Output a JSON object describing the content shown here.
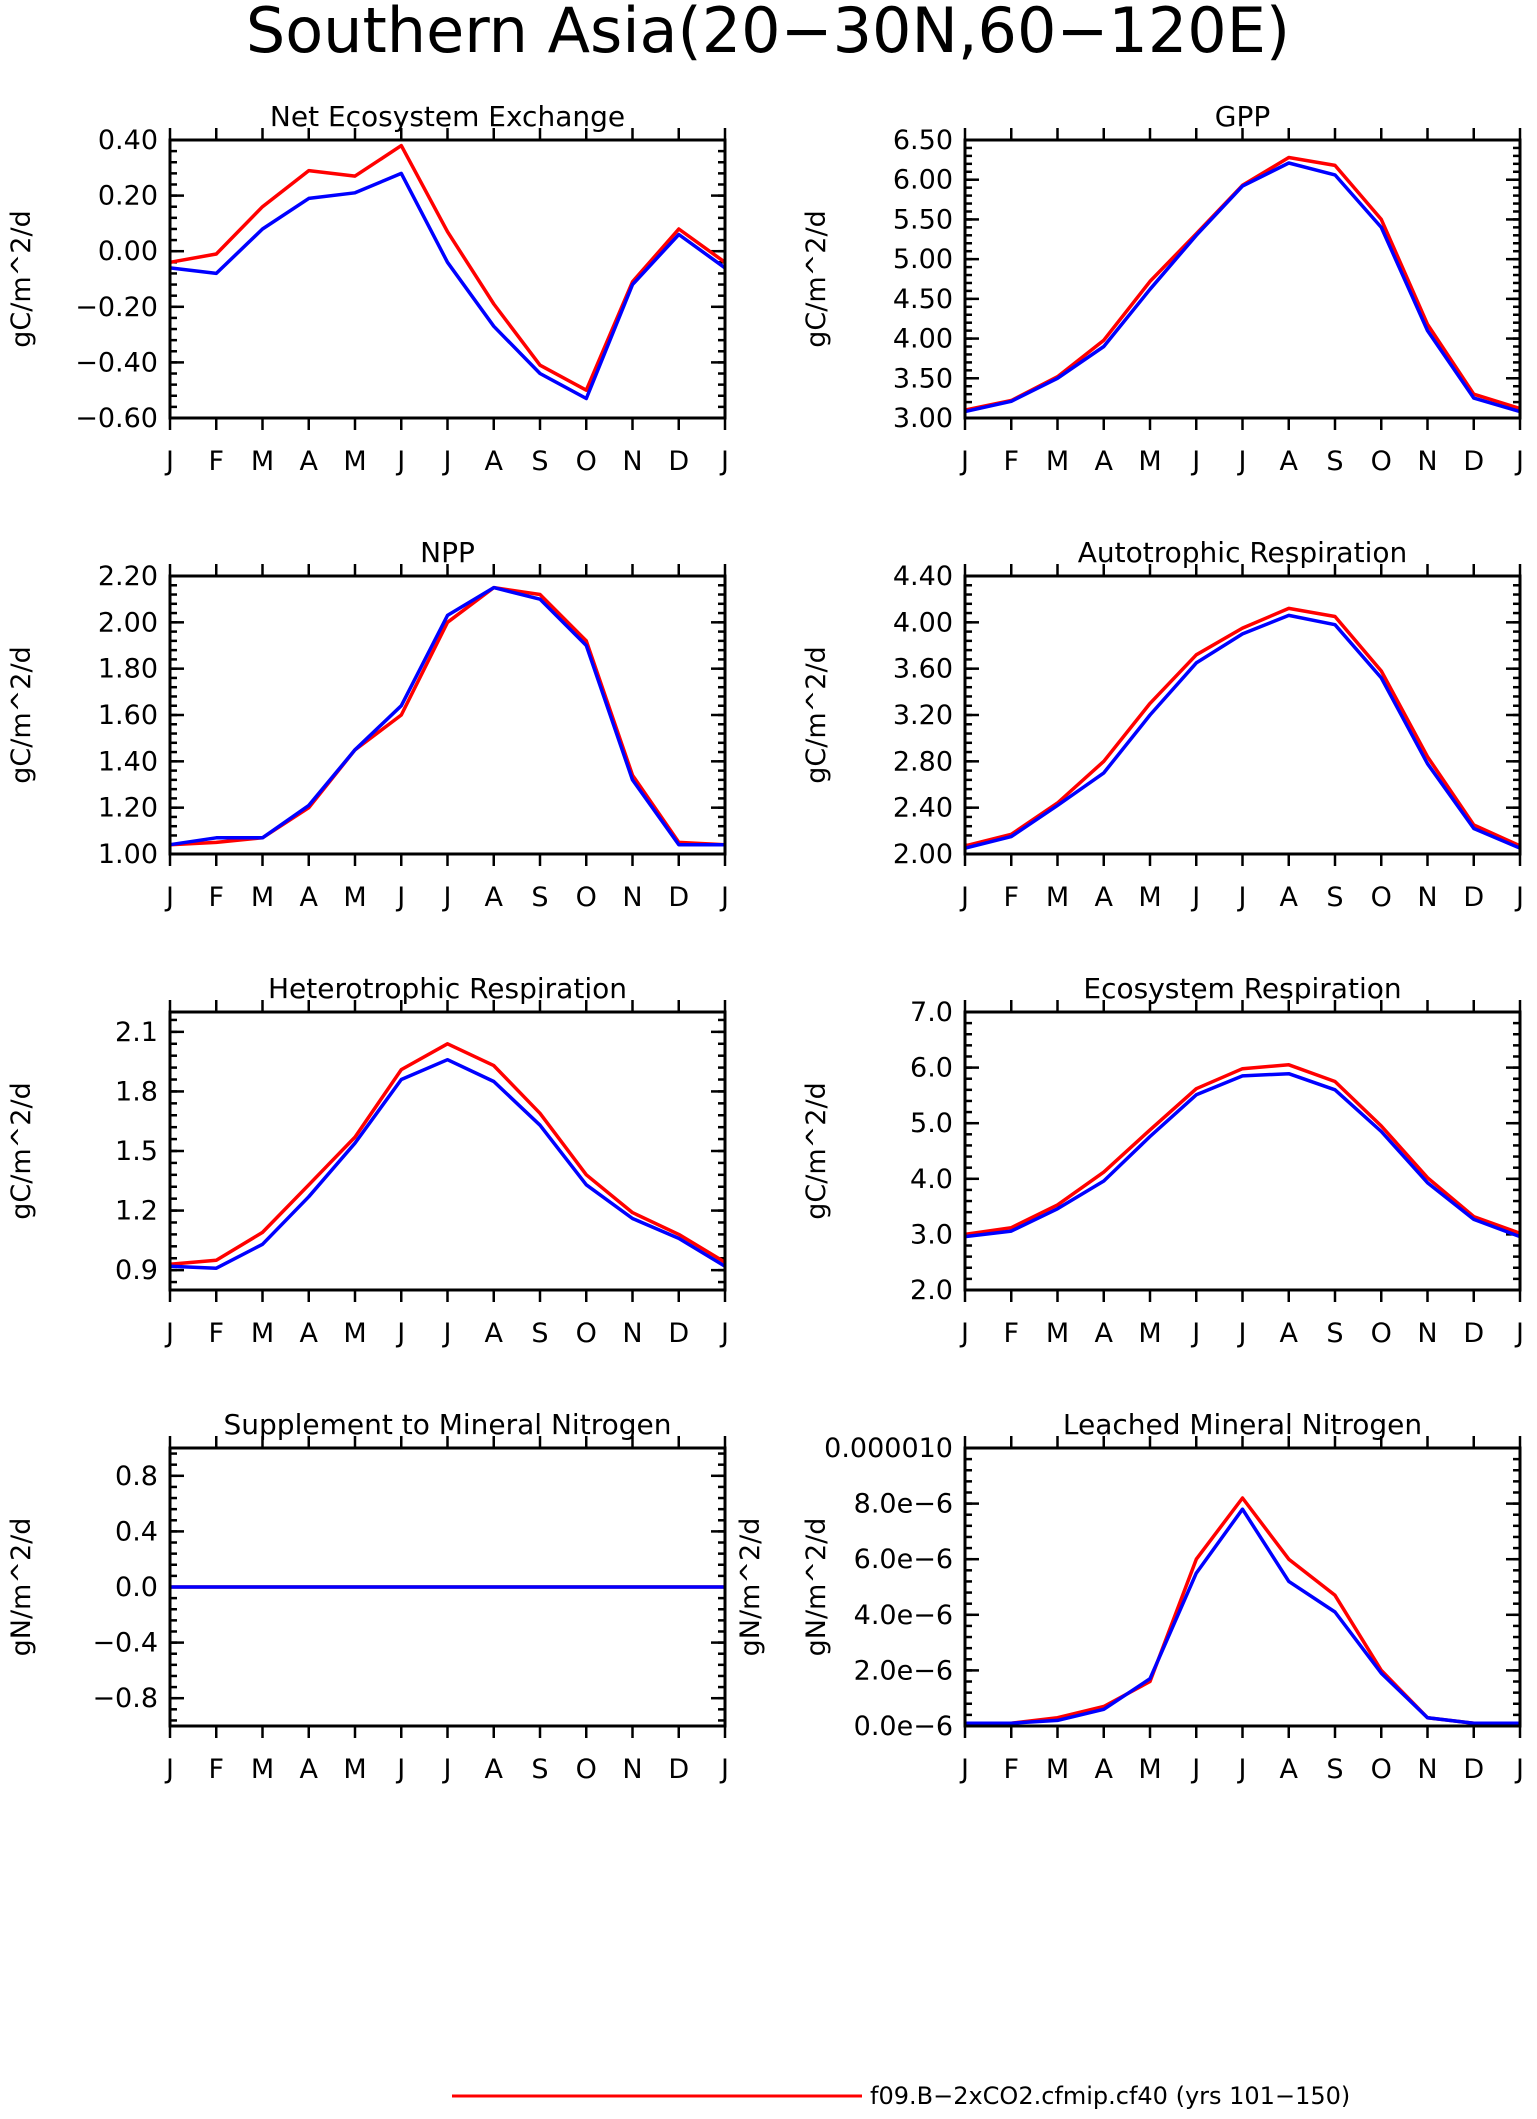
{
  "title": "Southern Asia(20−30N,60−120E)",
  "legend": [
    {
      "label": "f09.B−2xCO2.cfmip.cf40 (yrs 101−150)",
      "color": "#ff0000"
    }
  ],
  "colors": {
    "series_red": "#ff0000",
    "series_blue": "#0000ff"
  },
  "chart_data": [
    {
      "type": "line",
      "title": "Net Ecosystem Exchange",
      "ylabel": "gC/m^2/d",
      "categories": [
        "J",
        "F",
        "M",
        "A",
        "M",
        "J",
        "J",
        "A",
        "S",
        "O",
        "N",
        "D",
        "J"
      ],
      "yticks": [
        -0.6,
        -0.4,
        -0.2,
        0.0,
        0.2,
        0.4
      ],
      "ytick_labels": [
        "−0.60",
        "−0.40",
        "−0.20",
        "0.00",
        "0.20",
        "0.40"
      ],
      "ylim": [
        -0.6,
        0.4
      ],
      "series": [
        {
          "color": "#ff0000",
          "values": [
            -0.04,
            -0.01,
            0.16,
            0.29,
            0.27,
            0.38,
            0.07,
            -0.19,
            -0.41,
            -0.5,
            -0.11,
            0.08,
            -0.04
          ]
        },
        {
          "color": "#0000ff",
          "values": [
            -0.06,
            -0.08,
            0.08,
            0.19,
            0.21,
            0.28,
            -0.04,
            -0.27,
            -0.44,
            -0.53,
            -0.12,
            0.06,
            -0.06
          ]
        }
      ]
    },
    {
      "type": "line",
      "title": "GPP",
      "ylabel": "gC/m^2/d",
      "categories": [
        "J",
        "F",
        "M",
        "A",
        "M",
        "J",
        "J",
        "A",
        "S",
        "O",
        "N",
        "D",
        "J"
      ],
      "yticks": [
        3.0,
        3.5,
        4.0,
        4.5,
        5.0,
        5.5,
        6.0,
        6.5
      ],
      "ytick_labels": [
        "3.00",
        "3.50",
        "4.00",
        "4.50",
        "5.00",
        "5.50",
        "6.00",
        "6.50"
      ],
      "ylim": [
        3.0,
        6.5
      ],
      "series": [
        {
          "color": "#ff0000",
          "values": [
            3.1,
            3.22,
            3.52,
            3.98,
            4.72,
            5.32,
            5.93,
            6.28,
            6.18,
            5.5,
            4.18,
            3.3,
            3.12
          ]
        },
        {
          "color": "#0000ff",
          "values": [
            3.08,
            3.21,
            3.5,
            3.9,
            4.62,
            5.3,
            5.92,
            6.21,
            6.06,
            5.4,
            4.1,
            3.25,
            3.08
          ]
        }
      ]
    },
    {
      "type": "line",
      "title": "NPP",
      "ylabel": "gC/m^2/d",
      "categories": [
        "J",
        "F",
        "M",
        "A",
        "M",
        "J",
        "J",
        "A",
        "S",
        "O",
        "N",
        "D",
        "J"
      ],
      "yticks": [
        1.0,
        1.2,
        1.4,
        1.6,
        1.8,
        2.0,
        2.2
      ],
      "ytick_labels": [
        "1.00",
        "1.20",
        "1.40",
        "1.60",
        "1.80",
        "2.00",
        "2.20"
      ],
      "ylim": [
        1.0,
        2.2
      ],
      "series": [
        {
          "color": "#ff0000",
          "values": [
            1.04,
            1.05,
            1.07,
            1.2,
            1.45,
            1.6,
            2.0,
            2.15,
            2.12,
            1.92,
            1.34,
            1.05,
            1.04
          ]
        },
        {
          "color": "#0000ff",
          "values": [
            1.04,
            1.07,
            1.07,
            1.21,
            1.45,
            1.64,
            2.03,
            2.15,
            2.1,
            1.9,
            1.32,
            1.04,
            1.04
          ]
        }
      ]
    },
    {
      "type": "line",
      "title": "Autotrophic Respiration",
      "ylabel": "gC/m^2/d",
      "categories": [
        "J",
        "F",
        "M",
        "A",
        "M",
        "J",
        "J",
        "A",
        "S",
        "O",
        "N",
        "D",
        "J"
      ],
      "yticks": [
        2.0,
        2.4,
        2.8,
        3.2,
        3.6,
        4.0,
        4.4
      ],
      "ytick_labels": [
        "2.00",
        "2.40",
        "2.80",
        "3.20",
        "3.60",
        "4.00",
        "4.40"
      ],
      "ylim": [
        2.0,
        4.4
      ],
      "series": [
        {
          "color": "#ff0000",
          "values": [
            2.07,
            2.17,
            2.44,
            2.8,
            3.3,
            3.72,
            3.95,
            4.12,
            4.05,
            3.58,
            2.84,
            2.25,
            2.07
          ]
        },
        {
          "color": "#0000ff",
          "values": [
            2.05,
            2.15,
            2.42,
            2.7,
            3.2,
            3.65,
            3.9,
            4.06,
            3.98,
            3.52,
            2.78,
            2.22,
            2.05
          ]
        }
      ]
    },
    {
      "type": "line",
      "title": "Heterotrophic Respiration",
      "ylabel": "gC/m^2/d",
      "categories": [
        "J",
        "F",
        "M",
        "A",
        "M",
        "J",
        "J",
        "A",
        "S",
        "O",
        "N",
        "D",
        "J"
      ],
      "yticks": [
        0.9,
        1.2,
        1.5,
        1.8,
        2.1
      ],
      "ytick_labels": [
        "0.9",
        "1.2",
        "1.5",
        "1.8",
        "2.1"
      ],
      "ylim": [
        0.8,
        2.2
      ],
      "series": [
        {
          "color": "#ff0000",
          "values": [
            0.93,
            0.95,
            1.09,
            1.33,
            1.57,
            1.91,
            2.04,
            1.93,
            1.69,
            1.38,
            1.19,
            1.08,
            0.94
          ]
        },
        {
          "color": "#0000ff",
          "values": [
            0.92,
            0.91,
            1.03,
            1.27,
            1.54,
            1.86,
            1.96,
            1.85,
            1.63,
            1.33,
            1.16,
            1.06,
            0.92
          ]
        }
      ]
    },
    {
      "type": "line",
      "title": "Ecosystem Respiration",
      "ylabel": "gC/m^2/d",
      "categories": [
        "J",
        "F",
        "M",
        "A",
        "M",
        "J",
        "J",
        "A",
        "S",
        "O",
        "N",
        "D",
        "J"
      ],
      "yticks": [
        2.0,
        3.0,
        4.0,
        5.0,
        6.0,
        7.0
      ],
      "ytick_labels": [
        "2.0",
        "3.0",
        "4.0",
        "5.0",
        "6.0",
        "7.0"
      ],
      "ylim": [
        2.0,
        7.0
      ],
      "series": [
        {
          "color": "#ff0000",
          "values": [
            3.0,
            3.12,
            3.53,
            4.12,
            4.88,
            5.62,
            5.98,
            6.05,
            5.75,
            4.95,
            4.02,
            3.32,
            3.02
          ]
        },
        {
          "color": "#0000ff",
          "values": [
            2.96,
            3.06,
            3.46,
            3.96,
            4.76,
            5.51,
            5.85,
            5.89,
            5.6,
            4.85,
            3.93,
            3.27,
            2.96
          ]
        }
      ]
    },
    {
      "type": "line",
      "title": "Supplement to Mineral Nitrogen",
      "ylabel": "gN/m^2/d",
      "categories": [
        "J",
        "F",
        "M",
        "A",
        "M",
        "J",
        "J",
        "A",
        "S",
        "O",
        "N",
        "D",
        "J"
      ],
      "yticks": [
        -0.8,
        -0.4,
        0.0,
        0.4,
        0.8
      ],
      "ytick_labels": [
        "−0.8",
        "−0.4",
        "0.0",
        "0.4",
        "0.8"
      ],
      "ylim": [
        -1.0,
        1.0
      ],
      "right_ylabel": true,
      "series": [
        {
          "color": "#ff0000",
          "values": [
            0,
            0,
            0,
            0,
            0,
            0,
            0,
            0,
            0,
            0,
            0,
            0,
            0
          ]
        },
        {
          "color": "#0000ff",
          "values": [
            0,
            0,
            0,
            0,
            0,
            0,
            0,
            0,
            0,
            0,
            0,
            0,
            0
          ]
        }
      ]
    },
    {
      "type": "line",
      "title": "Leached Mineral Nitrogen",
      "ylabel": "gN/m^2/d",
      "categories": [
        "J",
        "F",
        "M",
        "A",
        "M",
        "J",
        "J",
        "A",
        "S",
        "O",
        "N",
        "D",
        "J"
      ],
      "yticks": [
        0.0,
        2e-06,
        4e-06,
        6e-06,
        8e-06,
        1e-05
      ],
      "ytick_labels": [
        "0.0e−6",
        "2.0e−6",
        "4.0e−6",
        "6.0e−6",
        "8.0e−6",
        "0.000010"
      ],
      "ylim": [
        0.0,
        1e-05
      ],
      "series": [
        {
          "color": "#ff0000",
          "values": [
            1e-07,
            1e-07,
            3e-07,
            7e-07,
            1.6e-06,
            6e-06,
            8.2e-06,
            6e-06,
            4.7e-06,
            2e-06,
            3e-07,
            1e-07,
            1e-07
          ]
        },
        {
          "color": "#0000ff",
          "values": [
            1e-07,
            1e-07,
            2e-07,
            6e-07,
            1.7e-06,
            5.5e-06,
            7.8e-06,
            5.2e-06,
            4.1e-06,
            1.9e-06,
            3e-07,
            1e-07,
            1e-07
          ]
        }
      ]
    }
  ]
}
